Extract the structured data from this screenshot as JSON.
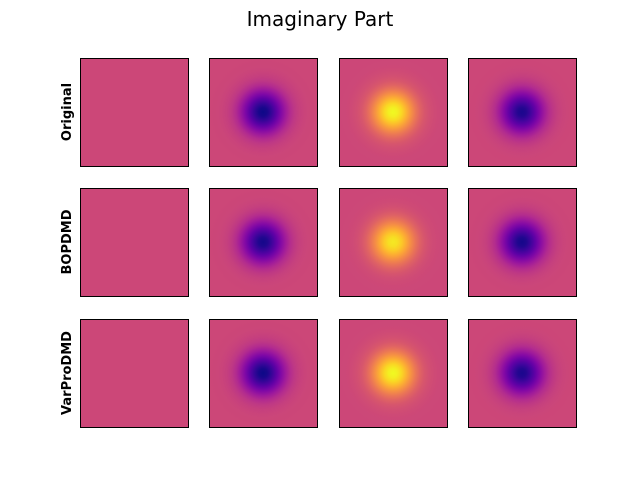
{
  "chart_data": {
    "type": "heatmap",
    "title": "Imaginary Part",
    "colormap": "plasma",
    "value_range": [
      -1,
      1
    ],
    "axes_ticks": false,
    "grid": false,
    "rows": [
      {
        "label": "Original",
        "panels": [
          {
            "center_value": 0.0,
            "background_value": 0.0
          },
          {
            "center_value": -1.0,
            "background_value": 0.0
          },
          {
            "center_value": 1.0,
            "background_value": 0.0
          },
          {
            "center_value": -0.95,
            "background_value": 0.0
          }
        ]
      },
      {
        "label": "BOPDMD",
        "panels": [
          {
            "center_value": 0.0,
            "background_value": 0.0
          },
          {
            "center_value": -0.97,
            "background_value": 0.0
          },
          {
            "center_value": 0.92,
            "background_value": 0.0
          },
          {
            "center_value": -0.97,
            "background_value": 0.0
          }
        ]
      },
      {
        "label": "VarProDMD",
        "panels": [
          {
            "center_value": 0.0,
            "background_value": 0.0
          },
          {
            "center_value": -1.0,
            "background_value": 0.0
          },
          {
            "center_value": 1.0,
            "background_value": 0.0
          },
          {
            "center_value": -0.95,
            "background_value": 0.0
          }
        ]
      }
    ]
  }
}
